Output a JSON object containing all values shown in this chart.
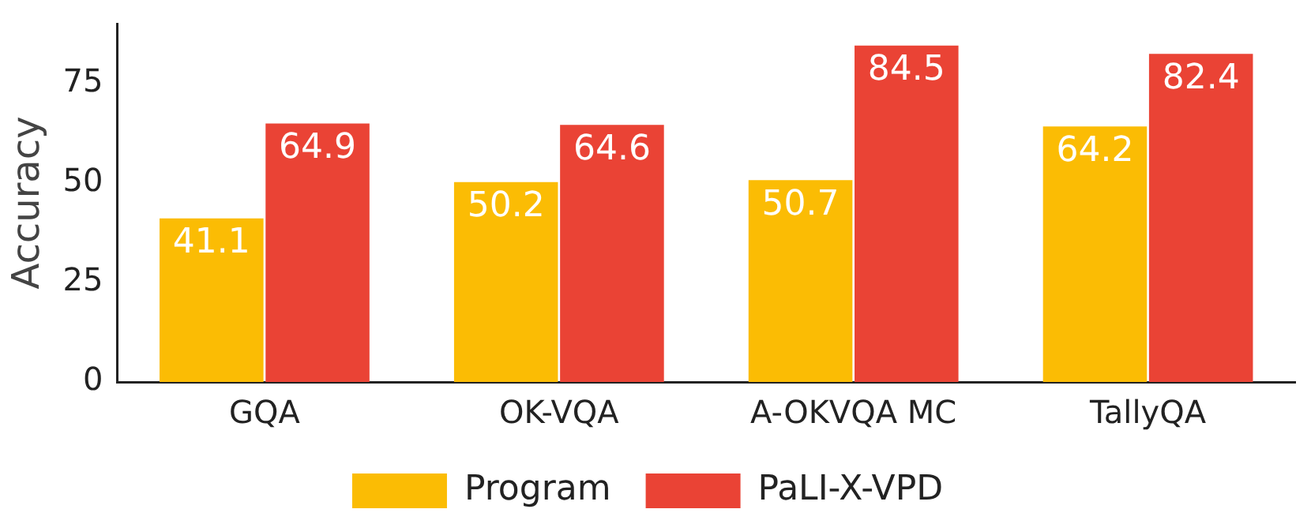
{
  "chart_data": {
    "type": "bar",
    "ylabel": "Accuracy",
    "categories": [
      "GQA",
      "OK-VQA",
      "A-OKVQA MC",
      "TallyQA"
    ],
    "series": [
      {
        "name": "Program",
        "color": "#fbbc04",
        "values": [
          41.1,
          50.2,
          50.7,
          64.2
        ]
      },
      {
        "name": "PaLI-X-VPD",
        "color": "#ea4335",
        "values": [
          64.9,
          64.6,
          84.5,
          82.4
        ]
      }
    ],
    "ylim": [
      0,
      90
    ],
    "yticks": [
      0,
      25,
      50,
      75
    ],
    "data_labels": true,
    "grid": false,
    "legend": "bottom"
  }
}
